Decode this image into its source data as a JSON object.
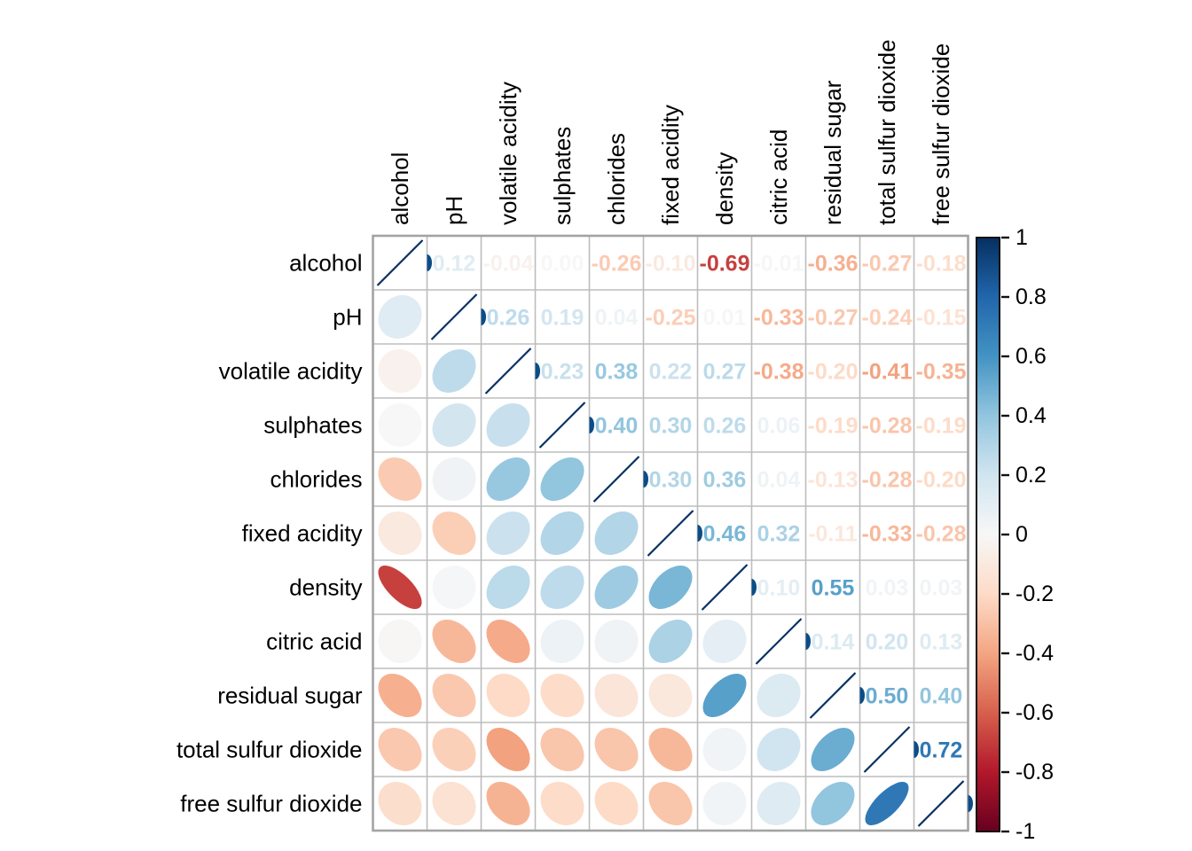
{
  "chart_data": {
    "type": "heatmap",
    "variant": "correlation-matrix (lower triangle = ellipse glyphs, upper triangle = numeric coefficients, diagonal = r=1 line)",
    "title": "",
    "variables": [
      "alcohol",
      "pH",
      "volatile acidity",
      "sulphates",
      "chlorides",
      "fixed acidity",
      "density",
      "citric acid",
      "residual sugar",
      "total sulfur dioxide",
      "free sulfur dioxide"
    ],
    "matrix": [
      [
        1.0,
        0.12,
        -0.04,
        0.0,
        -0.26,
        -0.1,
        -0.69,
        -0.01,
        -0.36,
        -0.27,
        -0.18
      ],
      [
        0.12,
        1.0,
        0.26,
        0.19,
        0.04,
        -0.25,
        0.01,
        -0.33,
        -0.27,
        -0.24,
        -0.15
      ],
      [
        -0.04,
        0.26,
        1.0,
        0.23,
        0.38,
        0.22,
        0.27,
        -0.38,
        -0.2,
        -0.41,
        -0.35
      ],
      [
        0.0,
        0.19,
        0.23,
        1.0,
        0.4,
        0.3,
        0.26,
        0.06,
        -0.19,
        -0.28,
        -0.19
      ],
      [
        -0.26,
        0.04,
        0.38,
        0.4,
        1.0,
        0.3,
        0.36,
        0.04,
        -0.13,
        -0.28,
        -0.2
      ],
      [
        -0.1,
        -0.25,
        0.22,
        0.3,
        0.3,
        1.0,
        0.46,
        0.32,
        -0.11,
        -0.33,
        -0.28
      ],
      [
        -0.69,
        0.01,
        0.27,
        0.26,
        0.36,
        0.46,
        1.0,
        0.1,
        0.55,
        0.03,
        0.03
      ],
      [
        -0.01,
        -0.33,
        -0.38,
        0.06,
        0.04,
        0.32,
        0.1,
        1.0,
        0.14,
        0.2,
        0.13
      ],
      [
        -0.36,
        -0.27,
        -0.2,
        -0.19,
        -0.13,
        -0.11,
        0.55,
        0.14,
        1.0,
        0.5,
        0.4
      ],
      [
        -0.27,
        -0.24,
        -0.41,
        -0.28,
        -0.28,
        -0.33,
        0.03,
        0.2,
        0.5,
        1.0,
        0.72
      ],
      [
        -0.18,
        -0.15,
        -0.35,
        -0.19,
        -0.2,
        -0.28,
        0.03,
        0.13,
        0.4,
        0.72,
        1.0
      ]
    ],
    "value_decimals": 2,
    "grid": true,
    "colorbar": {
      "position": "right",
      "min": -1,
      "max": 1,
      "tick_labels": [
        "1",
        "0.8",
        "0.6",
        "0.4",
        "0.2",
        "0",
        "-0.2",
        "-0.4",
        "-0.6",
        "-0.8",
        "-1"
      ],
      "palette_neg_to_pos": [
        "#67001F",
        "#B2182B",
        "#D6604D",
        "#F4A582",
        "#FDDBC7",
        "#F7F7F7",
        "#D1E5F0",
        "#92C5DE",
        "#4393C3",
        "#2166AC",
        "#053061"
      ]
    },
    "colors": {
      "background": "#ffffff",
      "diagonal_line": "#053061",
      "diagonal_end_dot": "#0c4c87",
      "grid_line": "#bdbdbd",
      "outer_border": "#a3a3a3",
      "label_text": "#000000",
      "colorbar_border": "#111111"
    }
  }
}
